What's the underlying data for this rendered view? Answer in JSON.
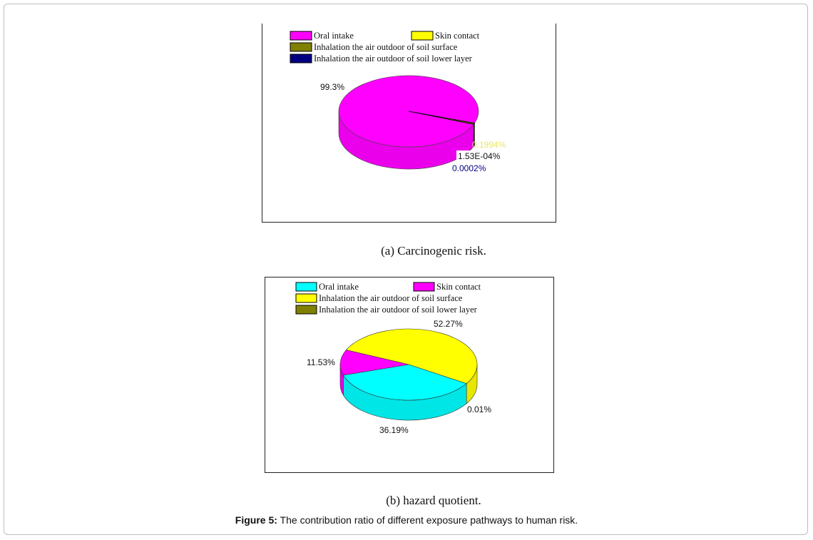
{
  "chart_data": [
    {
      "type": "pie",
      "title": "",
      "caption": "(a) Carcinogenic risk.",
      "legend_position": "top",
      "series": [
        {
          "name": "Oral intake",
          "value": 99.3,
          "label": "99.3%",
          "color": "#ff00ff"
        },
        {
          "name": "Skin contact",
          "value": 0.1994,
          "label": "0.1994%",
          "color": "#ffff00"
        },
        {
          "name": "Inhalation the air outdoor of soil surface",
          "value": 0.000153,
          "label": "1.53E-04%",
          "color": "#808000"
        },
        {
          "name": "Inhalation the air outdoor of soil lower layer",
          "value": 0.0002,
          "label": "0.0002%",
          "color": "#000080"
        }
      ]
    },
    {
      "type": "pie",
      "title": "",
      "caption": "(b) hazard quotient.",
      "legend_position": "top",
      "series": [
        {
          "name": "Oral intake",
          "value": 36.19,
          "label": "36.19%",
          "color": "#00ffff"
        },
        {
          "name": "Skin contact",
          "value": 11.53,
          "label": "11.53%",
          "color": "#ff00ff"
        },
        {
          "name": "Inhalation the air outdoor of soil surface",
          "value": 52.27,
          "label": "52.27%",
          "color": "#ffff00"
        },
        {
          "name": "Inhalation the air outdoor of soil lower layer",
          "value": 0.01,
          "label": "0.01%",
          "color": "#808000"
        }
      ]
    }
  ],
  "figure": {
    "label": "Figure 5:",
    "text": " The contribution ratio of different exposure pathways to human risk."
  }
}
